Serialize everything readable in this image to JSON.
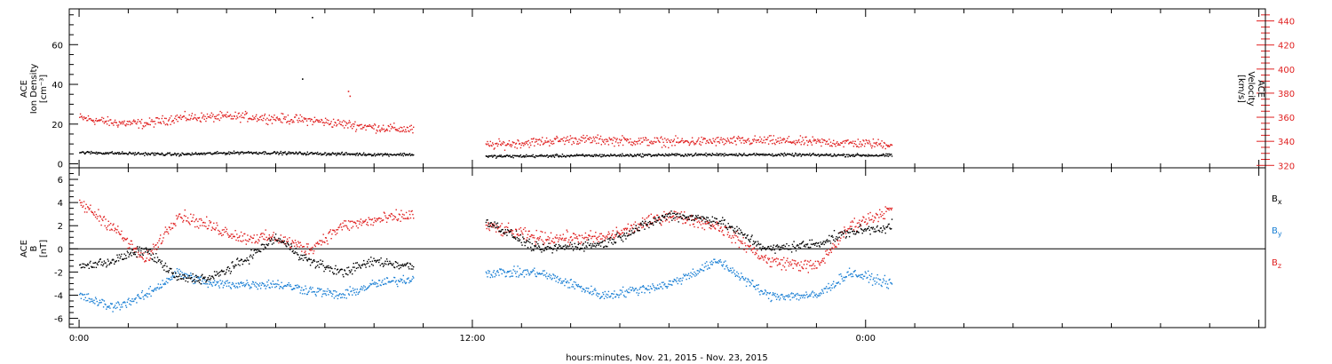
{
  "xaxis": {
    "title": "hours:minutes, Nov. 21, 2015 - Nov. 23, 2015",
    "range_hours": [
      -0.3,
      36.2
    ],
    "ticks": [
      {
        "t": 0,
        "label": "0:00"
      },
      {
        "t": 12,
        "label": "12:00"
      },
      {
        "t": 24,
        "label": "0:00"
      }
    ]
  },
  "chart_data": [
    {
      "type": "scatter",
      "panel": "top",
      "ylabel": [
        "ACE",
        "Ion Density",
        "[cm⁻³]"
      ],
      "ylim": [
        -2,
        78
      ],
      "yticks": [
        0,
        20,
        40,
        60
      ],
      "y2label": [
        "ACE",
        "Velocity",
        "[km/s]"
      ],
      "y2lim": [
        318,
        450
      ],
      "y2ticks": [
        320,
        340,
        360,
        380,
        400,
        420,
        440
      ],
      "segments": [
        [
          0,
          10.2
        ],
        [
          12.4,
          24.8
        ]
      ],
      "series": [
        {
          "key": "density",
          "axis": "left",
          "color": "#000000",
          "approx_values": [
            [
              0,
              6
            ],
            [
              3,
              5
            ],
            [
              5,
              6
            ],
            [
              7,
              5.5
            ],
            [
              9,
              5
            ],
            [
              10.2,
              5
            ],
            [
              12.4,
              4
            ],
            [
              16,
              4.5
            ],
            [
              20,
              5
            ],
            [
              24.8,
              4.5
            ]
          ],
          "outliers": [
            [
              7.1,
              74
            ],
            [
              6.8,
              43
            ]
          ]
        },
        {
          "key": "velocity",
          "axis": "right",
          "color": "#e02020",
          "approx_values": [
            [
              0,
              360
            ],
            [
              1,
              356
            ],
            [
              2,
              355
            ],
            [
              3,
              360
            ],
            [
              5,
              361
            ],
            [
              7,
              358
            ],
            [
              9,
              352
            ],
            [
              10.2,
              350
            ],
            [
              12.4,
              337
            ],
            [
              15,
              342
            ],
            [
              18,
              340
            ],
            [
              21,
              341
            ],
            [
              24.8,
              338
            ]
          ],
          "outliers": [
            [
              8.2,
              382
            ],
            [
              8.25,
              378
            ]
          ]
        }
      ]
    },
    {
      "type": "scatter",
      "panel": "bottom",
      "ylabel": [
        "ACE",
        "B",
        "[nT]"
      ],
      "ylim": [
        -6.8,
        7.0
      ],
      "yticks": [
        -6,
        -4,
        -2,
        0,
        2,
        4,
        6
      ],
      "segments": [
        [
          0,
          10.2
        ],
        [
          12.4,
          24.8
        ]
      ],
      "series": [
        {
          "name": "Bx",
          "label_main": "B",
          "label_sub": "x",
          "color": "#000000",
          "approx_values": [
            [
              0,
              -1.5
            ],
            [
              1,
              -1
            ],
            [
              2,
              0
            ],
            [
              3,
              -2.5
            ],
            [
              4,
              -2.5
            ],
            [
              5,
              -1
            ],
            [
              6,
              1
            ],
            [
              7,
              -1
            ],
            [
              8,
              -2
            ],
            [
              9,
              -1
            ],
            [
              10.2,
              -1.5
            ],
            [
              12.4,
              2.5
            ],
            [
              14,
              0
            ],
            [
              16,
              0.5
            ],
            [
              18,
              3
            ],
            [
              19.5,
              2.5
            ],
            [
              21,
              0
            ],
            [
              22.5,
              0.5
            ],
            [
              23.5,
              1.5
            ],
            [
              24.8,
              2
            ]
          ]
        },
        {
          "name": "By",
          "label_main": "B",
          "label_sub": "y",
          "color": "#1a7fd4",
          "approx_values": [
            [
              0,
              -4
            ],
            [
              1,
              -5
            ],
            [
              2,
              -4
            ],
            [
              3,
              -2
            ],
            [
              4,
              -3
            ],
            [
              5,
              -3
            ],
            [
              6,
              -3
            ],
            [
              7,
              -3.5
            ],
            [
              8,
              -4
            ],
            [
              9,
              -3
            ],
            [
              10.2,
              -2.5
            ],
            [
              12.4,
              -2
            ],
            [
              14,
              -2
            ],
            [
              16,
              -4
            ],
            [
              18,
              -3
            ],
            [
              19.5,
              -1
            ],
            [
              21,
              -4
            ],
            [
              22.5,
              -4
            ],
            [
              23.5,
              -2
            ],
            [
              24.8,
              -3
            ]
          ]
        },
        {
          "name": "Bz",
          "label_main": "B",
          "label_sub": "z",
          "color": "#e02020",
          "approx_values": [
            [
              0,
              4
            ],
            [
              1,
              2
            ],
            [
              2,
              -1
            ],
            [
              3,
              3
            ],
            [
              4,
              2
            ],
            [
              5,
              1
            ],
            [
              6,
              1
            ],
            [
              7,
              0
            ],
            [
              8,
              2
            ],
            [
              9,
              2.5
            ],
            [
              10.2,
              3
            ],
            [
              12.4,
              2
            ],
            [
              14,
              1
            ],
            [
              16,
              1
            ],
            [
              18,
              3
            ],
            [
              19.5,
              2
            ],
            [
              21,
              -1
            ],
            [
              22.5,
              -1.5
            ],
            [
              23.5,
              2
            ],
            [
              24.8,
              3.5
            ]
          ]
        }
      ]
    }
  ]
}
